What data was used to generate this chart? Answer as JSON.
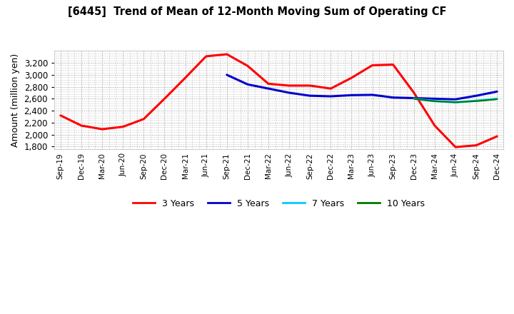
{
  "title": "[6445]  Trend of Mean of 12-Month Moving Sum of Operating CF",
  "ylabel": "Amount (million yen)",
  "background_color": "#ffffff",
  "grid_color": "#999999",
  "ylim": [
    1750,
    3400
  ],
  "yticks": [
    1800,
    2000,
    2200,
    2400,
    2600,
    2800,
    3000,
    3200
  ],
  "x_labels": [
    "Sep-19",
    "Dec-19",
    "Mar-20",
    "Jun-20",
    "Sep-20",
    "Dec-20",
    "Mar-21",
    "Jun-21",
    "Sep-21",
    "Dec-21",
    "Mar-22",
    "Jun-22",
    "Sep-22",
    "Dec-22",
    "Mar-23",
    "Jun-23",
    "Sep-23",
    "Dec-23",
    "Mar-24",
    "Jun-24",
    "Sep-24",
    "Dec-24"
  ],
  "series": {
    "3 Years": {
      "color": "#ff0000",
      "linewidth": 2.2,
      "data_x": [
        0,
        1,
        2,
        3,
        4,
        5,
        6,
        7,
        8,
        9,
        10,
        11,
        12,
        13,
        14,
        15,
        16,
        17,
        18,
        19,
        20,
        21
      ],
      "data_y": [
        2320,
        2150,
        2090,
        2130,
        2260,
        2600,
        2950,
        3310,
        3345,
        3150,
        2850,
        2820,
        2820,
        2770,
        2950,
        3160,
        3170,
        2700,
        2150,
        1790,
        1820,
        1970
      ]
    },
    "5 Years": {
      "color": "#0000cc",
      "linewidth": 2.2,
      "data_x": [
        8,
        9,
        10,
        11,
        12,
        13,
        14,
        15,
        16,
        17,
        18,
        19,
        20,
        21
      ],
      "data_y": [
        3000,
        2840,
        2770,
        2700,
        2650,
        2640,
        2660,
        2665,
        2620,
        2610,
        2600,
        2590,
        2650,
        2720
      ]
    },
    "7 Years": {
      "color": "#00ccff",
      "linewidth": 2.2,
      "data_x": [
        17,
        18,
        19,
        20,
        21
      ],
      "data_y": [
        2600,
        2560,
        2540,
        2565,
        2600
      ]
    },
    "10 Years": {
      "color": "#007700",
      "linewidth": 1.5,
      "data_x": [
        17,
        18,
        19,
        20,
        21
      ],
      "data_y": [
        2598,
        2558,
        2542,
        2560,
        2590
      ]
    }
  },
  "legend_order": [
    "3 Years",
    "5 Years",
    "7 Years",
    "10 Years"
  ]
}
